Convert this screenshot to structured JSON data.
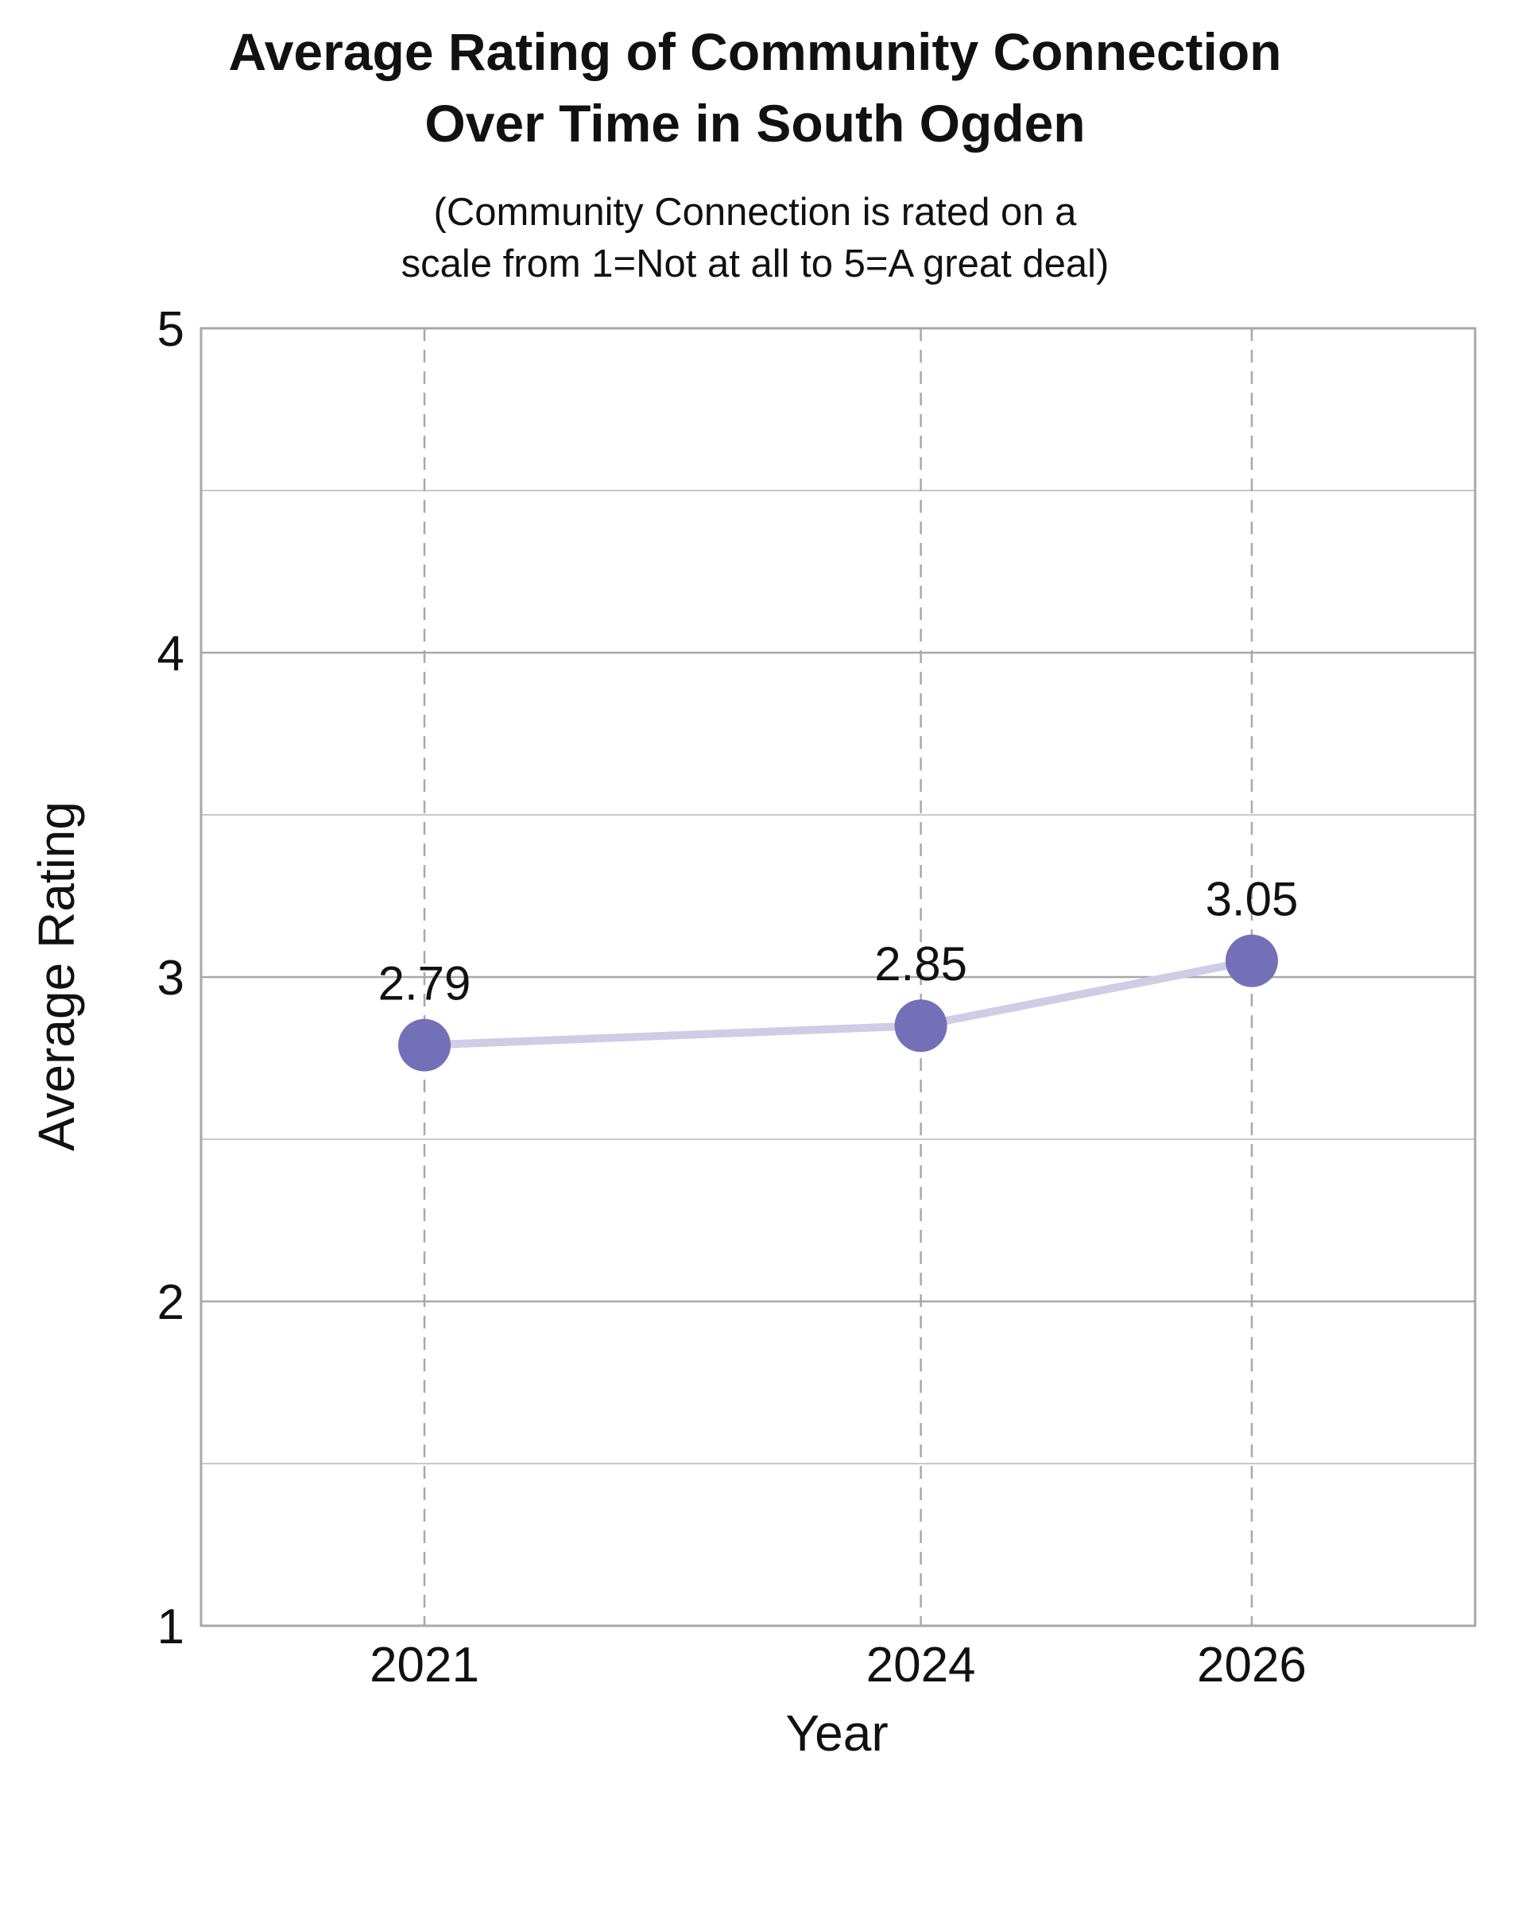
{
  "chart_data": {
    "type": "line",
    "title_lines": [
      "Average Rating of Community Connection",
      "Over Time in South Ogden"
    ],
    "subtitle_lines": [
      "(Community Connection is rated on a",
      "scale from 1=Not at all to 5=A great deal)"
    ],
    "xlabel": "Year",
    "ylabel": "Average Rating",
    "x": [
      2021,
      2024,
      2026
    ],
    "xlim": [
      2019.65,
      2027.35
    ],
    "ylim": [
      1,
      5
    ],
    "x_ticks": [
      2021,
      2024,
      2026
    ],
    "y_ticks": [
      1,
      2,
      3,
      4,
      5
    ],
    "grid": true,
    "series": [
      {
        "values": [
          2.79,
          2.85,
          3.05
        ],
        "data_labels": [
          "2.79",
          "2.85",
          "3.05"
        ],
        "marker_color": "#7370b8",
        "line_color": "#cfcce6"
      }
    ],
    "colors": {
      "frame": "#a8a8a8",
      "grid_major": "#a8a8a8",
      "grid_minor": "#c8c8c8",
      "grid_vertical": "#a8a8a8"
    }
  }
}
